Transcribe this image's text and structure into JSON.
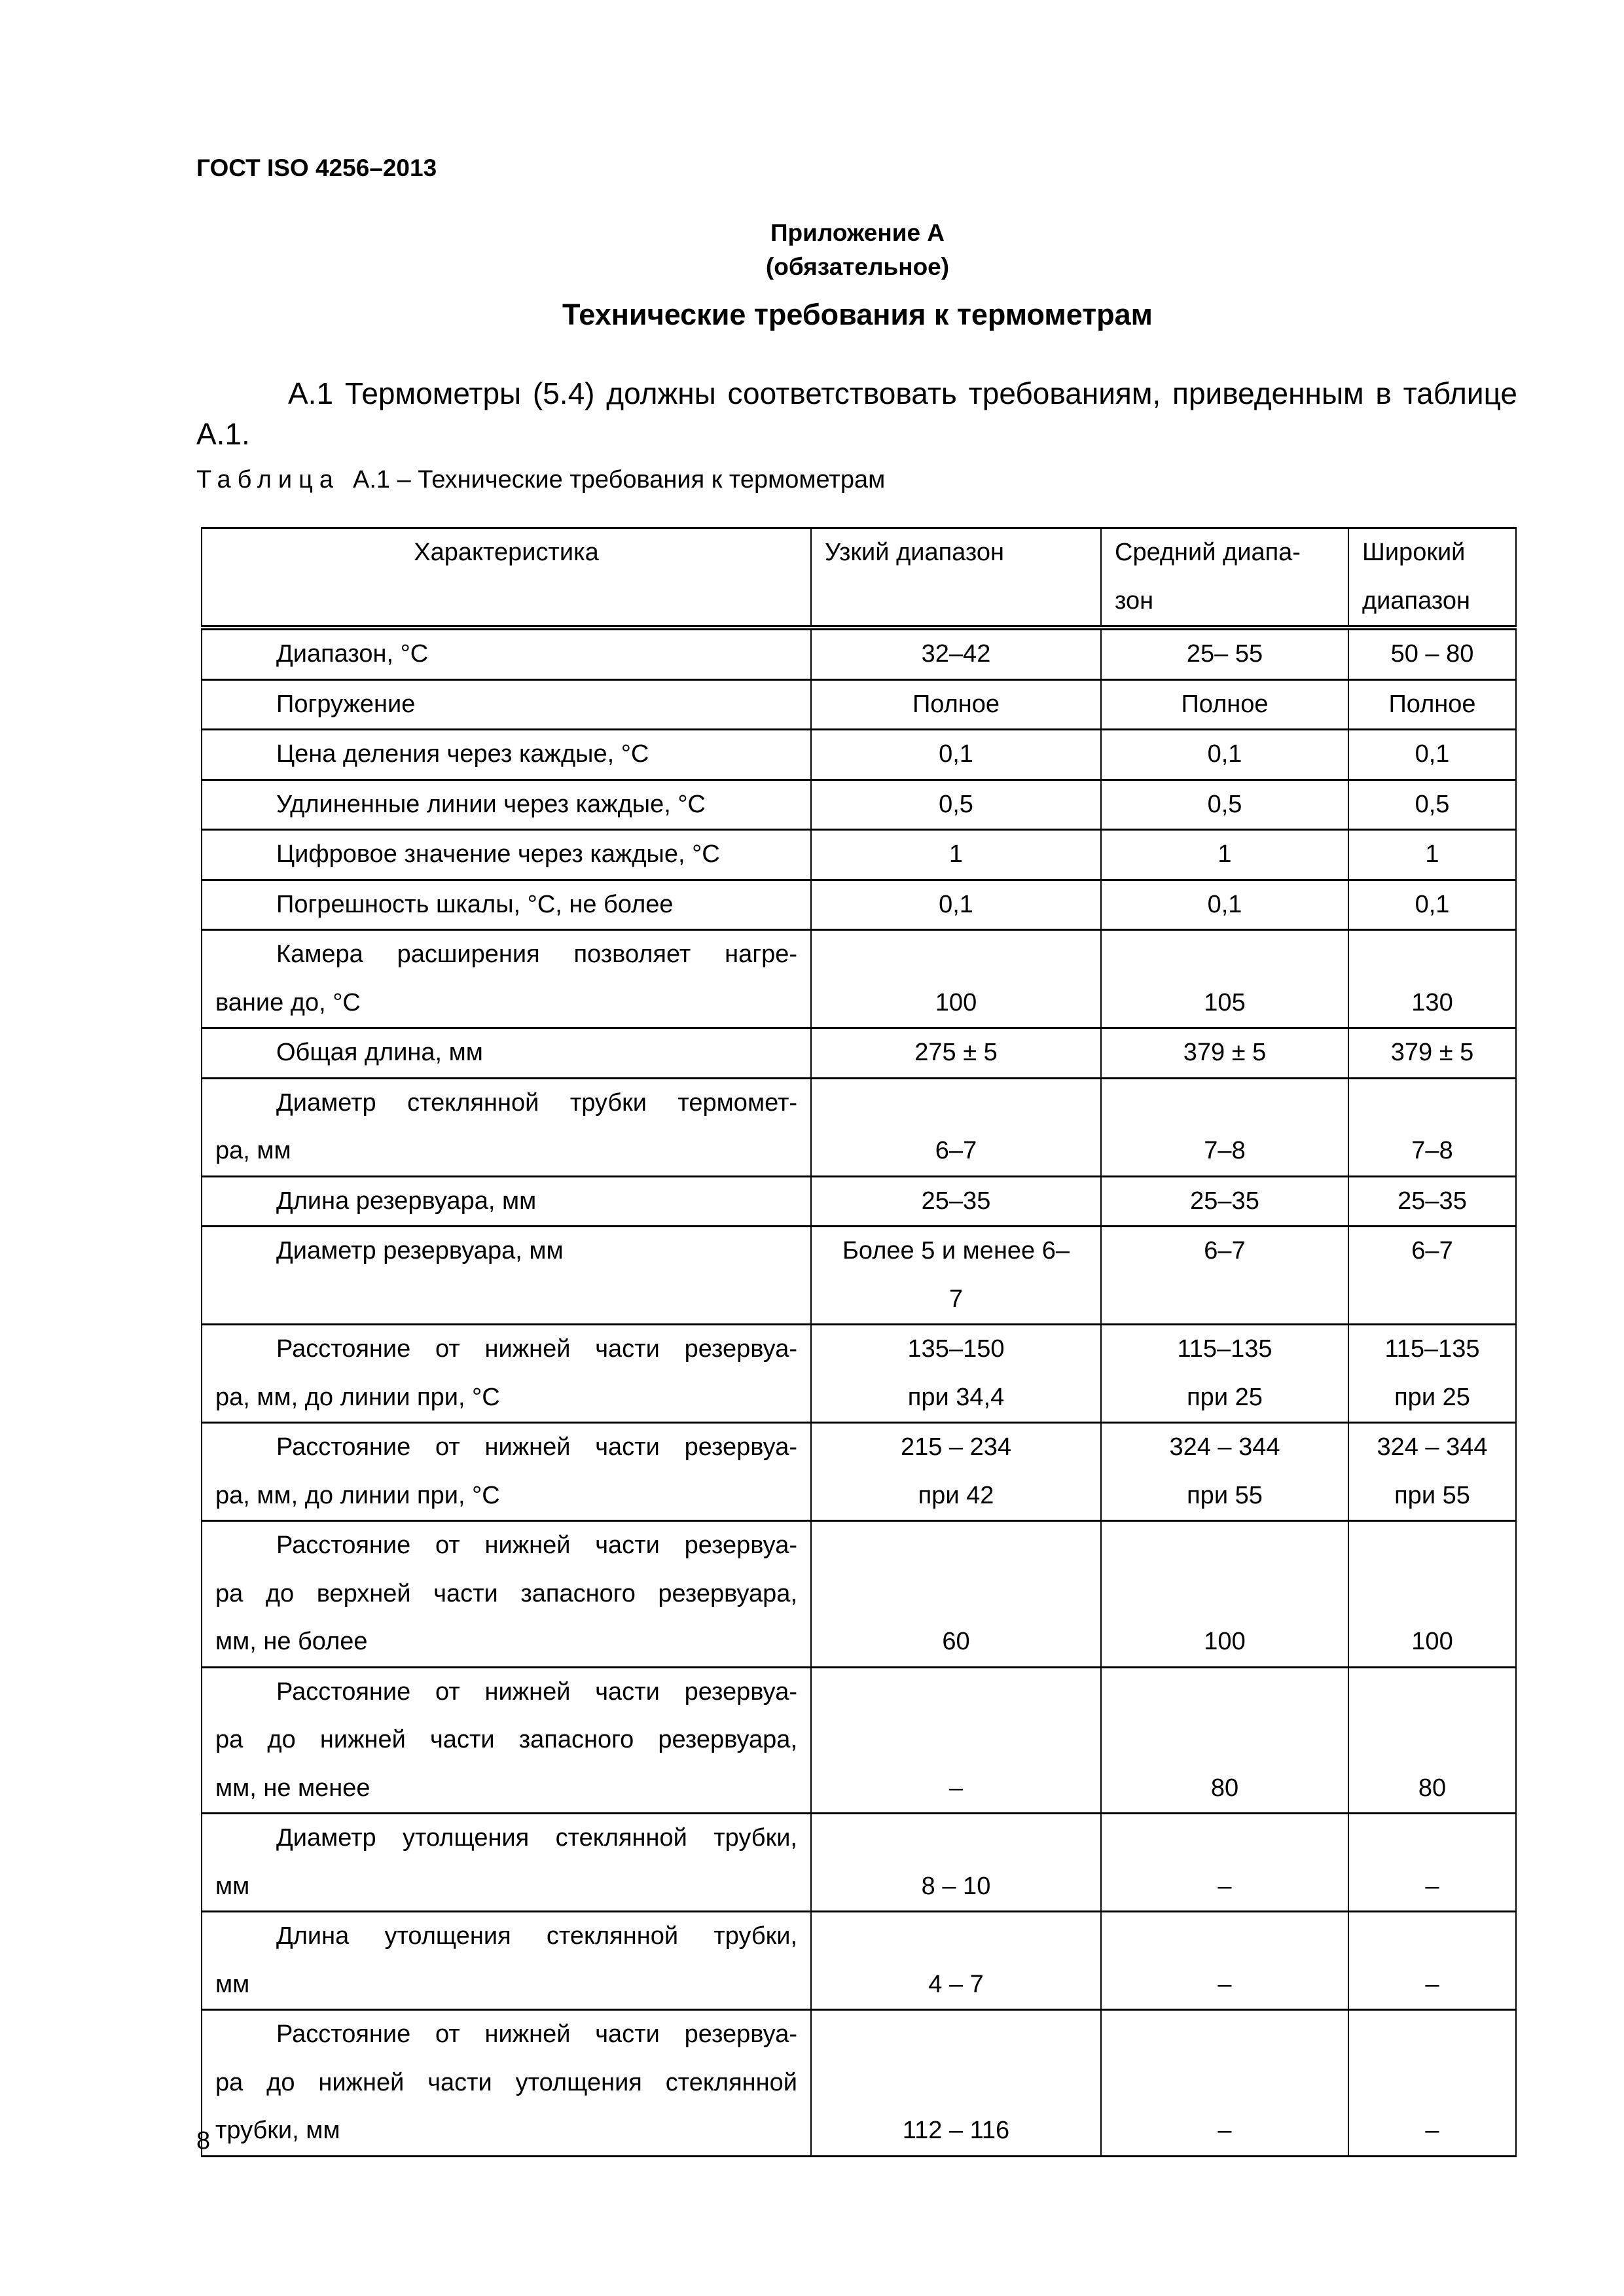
{
  "header": {
    "doc_code": "ГОСТ ISO 4256–2013"
  },
  "appendix": {
    "label": "Приложение А",
    "status": "(обязательное)"
  },
  "title": "Технические требования к термометрам",
  "paragraph": "А.1 Термометры (5.4) должны соответствовать требованиям, приведенным в таблице А.1.",
  "caption": {
    "prefix": "Таблица",
    "text": "А.1 – Технические требования к термометрам"
  },
  "table": {
    "headers": [
      "Характеристика",
      "Узкий диапазон",
      "Средний диапа-\nзон",
      "Широкий\nдиапазон"
    ],
    "rows": [
      {
        "label": [
          "Диапазон, °С"
        ],
        "values": [
          "32–42",
          "25– 55",
          "50 – 80"
        ]
      },
      {
        "label": [
          "Погружение"
        ],
        "values": [
          "Полное",
          "Полное",
          "Полное"
        ]
      },
      {
        "label": [
          "Цена деления через каждые, °С"
        ],
        "values": [
          "0,1",
          "0,1",
          "0,1"
        ]
      },
      {
        "label": [
          "Удлиненные линии через каждые, °С"
        ],
        "values": [
          "0,5",
          "0,5",
          "0,5"
        ]
      },
      {
        "label": [
          "Цифровое значение через каждые, °С"
        ],
        "values": [
          "1",
          "1",
          "1"
        ]
      },
      {
        "label": [
          "Погрешность шкалы, °С, не более"
        ],
        "values": [
          "0,1",
          "0,1",
          "0,1"
        ]
      },
      {
        "label": [
          "Камера расширения позволяет нагре-",
          "вание до, °С"
        ],
        "values": [
          "100",
          "105",
          "130"
        ]
      },
      {
        "label": [
          "Общая длина, мм"
        ],
        "values": [
          "275 ± 5",
          "379 ± 5",
          "379 ± 5"
        ]
      },
      {
        "label": [
          "Диаметр стеклянной трубки термомет-",
          "ра, мм"
        ],
        "values": [
          "6–7",
          "7–8",
          "7–8"
        ]
      },
      {
        "label": [
          "Длина резервуара, мм"
        ],
        "values": [
          "25–35",
          "25–35",
          "25–35"
        ]
      },
      {
        "label": [
          "Диаметр резервуара, мм"
        ],
        "values": [
          "Более 5 и менее 6–\n7",
          "6–7",
          "6–7"
        ]
      },
      {
        "label": [
          "Расстояние от нижней части резервуа-",
          "ра, мм, до линии при, °С"
        ],
        "values": [
          "135–150\nпри 34,4",
          "115–135\nпри 25",
          "115–135\nпри 25"
        ]
      },
      {
        "label": [
          "Расстояние от нижней части резервуа-",
          "ра, мм, до линии при, °С"
        ],
        "values": [
          "215 – 234\nпри 42",
          "324 – 344\nпри 55",
          "324 – 344\nпри 55"
        ]
      },
      {
        "label": [
          "Расстояние от нижней части резервуа-",
          "ра до верхней части запасного резервуара,",
          "мм, не более"
        ],
        "values": [
          "60",
          "100",
          "100"
        ]
      },
      {
        "label": [
          "Расстояние от нижней части резервуа-",
          "ра до нижней части запасного резервуара,",
          "мм, не менее"
        ],
        "values": [
          "–",
          "80",
          "80"
        ]
      },
      {
        "label": [
          "Диаметр утолщения стеклянной трубки,",
          "мм"
        ],
        "values": [
          "8 – 10",
          "–",
          "–"
        ]
      },
      {
        "label": [
          "Длина утолщения стеклянной трубки,",
          "мм"
        ],
        "values": [
          "4 – 7",
          "–",
          "–"
        ]
      },
      {
        "label": [
          "Расстояние от нижней части резервуа-",
          "ра до нижней части утолщения стеклянной",
          "трубки, мм"
        ],
        "values": [
          "112 – 116",
          "–",
          "–"
        ]
      }
    ]
  },
  "page_number": "8"
}
